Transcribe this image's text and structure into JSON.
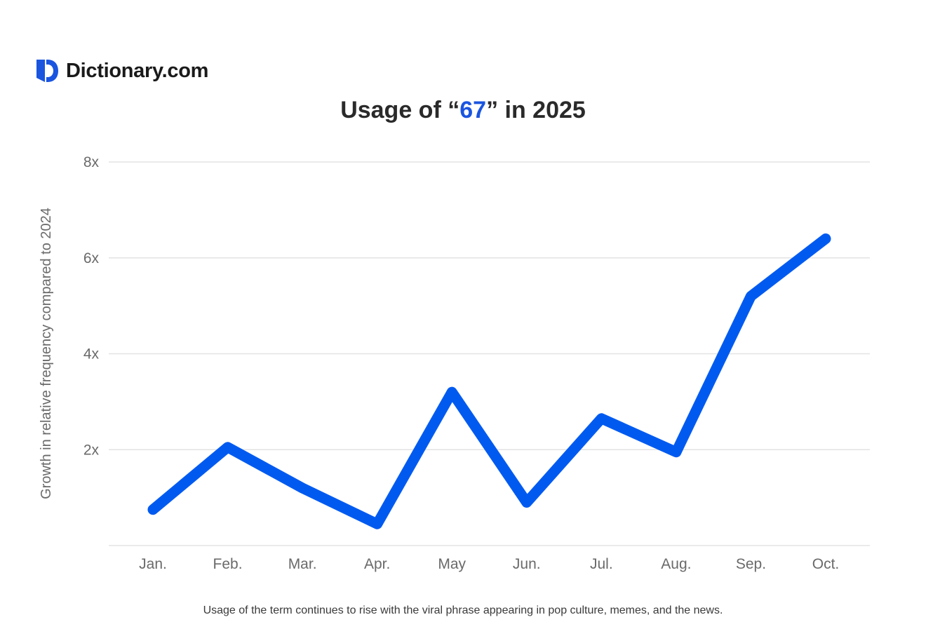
{
  "brand": {
    "name": "Dictionary.com",
    "logo_icon": "dictionary-d-logo-icon"
  },
  "title": {
    "prefix": "Usage of “",
    "term": "67",
    "suffix": "” in 2025"
  },
  "caption": "Usage of the term continues to rise with the viral phrase appearing in pop culture, memes, and the news.",
  "colors": {
    "line": "#005af0",
    "accent": "#1a55e0",
    "grid": "#e3e3e3",
    "axis_text": "#6a6a6a"
  },
  "chart_data": {
    "type": "line",
    "title": "Usage of “67” in 2025",
    "xlabel": "",
    "ylabel": "Growth in relative frequency compared to 2024",
    "categories": [
      "Jan.",
      "Feb.",
      "Mar.",
      "Apr.",
      "May",
      "Jun.",
      "Jul.",
      "Aug.",
      "Sep.",
      "Oct."
    ],
    "series": [
      {
        "values": [
          0.75,
          2.05,
          1.2,
          0.45,
          3.2,
          0.9,
          2.65,
          1.95,
          5.2,
          6.4
        ]
      }
    ],
    "ylim": [
      0,
      8
    ],
    "yticks": [
      2,
      4,
      6,
      8
    ],
    "ytick_labels": [
      "2x",
      "4x",
      "6x",
      "8x"
    ],
    "grid": true,
    "legend": "none"
  }
}
